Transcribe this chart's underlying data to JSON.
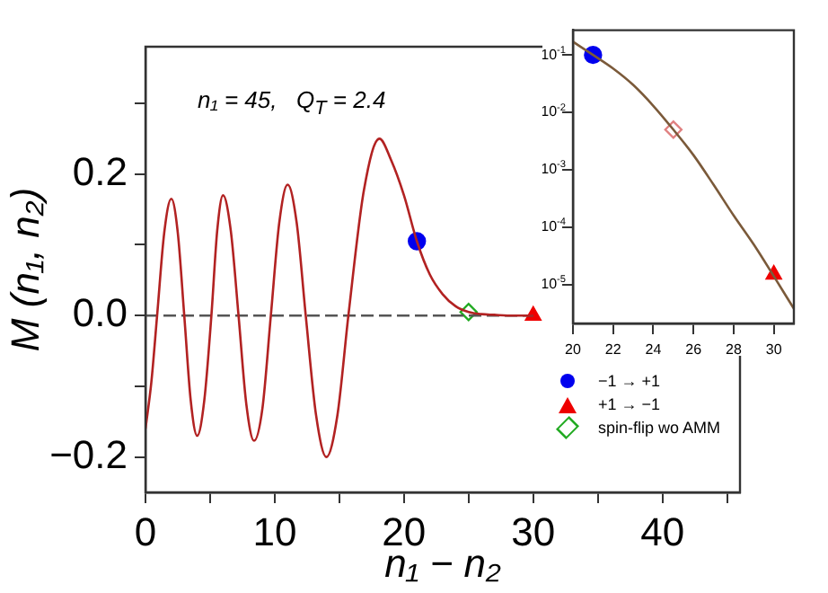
{
  "chart_data": [
    {
      "type": "line",
      "xlabel": "n₁ − n₂",
      "ylabel": "M (n₁, n₂)",
      "annotations": [
        "n₁ = 45,   Q$_{T}$ = 2.4"
      ],
      "xlim": [
        0,
        46
      ],
      "ylim": [
        -0.25,
        0.38
      ],
      "xticks": [
        0,
        {
          "value": 5,
          "label": null
        },
        10,
        {
          "value": 15,
          "label": null
        },
        20,
        {
          "value": 25,
          "label": null
        },
        30,
        {
          "value": 35,
          "label": null
        },
        40,
        {
          "value": 45,
          "label": null
        }
      ],
      "yticks": [
        {
          "value": -0.2,
          "label": "−0.2"
        },
        {
          "value": -0.1,
          "label": null
        },
        {
          "value": 0,
          "label": "0.0"
        },
        {
          "value": 0.1,
          "label": null
        },
        0.2,
        {
          "value": 0.3,
          "label": null
        }
      ],
      "grid": false,
      "legend": "bottom right",
      "series": [
        {
          "color": "#b22222",
          "x": [
            0,
            0.45,
            0.9,
            1.45,
            2,
            2.5,
            3,
            3.5,
            4,
            4.55,
            5.1,
            5.55,
            6,
            6.6,
            7.2,
            7.8,
            8.4,
            9.05,
            9.7,
            10.35,
            11,
            11.7,
            12.4,
            13.2,
            14,
            14.85,
            15.7,
            16.9,
            18.1,
            19,
            20,
            21,
            22,
            23,
            24,
            25,
            26,
            27,
            28,
            30
          ],
          "values": [
            -0.16,
            -0.095,
            0,
            0.117,
            0.165,
            0.117,
            0,
            -0.12,
            -0.17,
            -0.12,
            0,
            0.12,
            0.17,
            0.12,
            0,
            -0.125,
            -0.177,
            -0.131,
            0,
            0.131,
            0.185,
            0.131,
            0,
            -0.141,
            -0.2,
            -0.141,
            0,
            0.177,
            0.25,
            0.22,
            0.17,
            0.105,
            0.058,
            0.03,
            0.013,
            0.005,
            0.002,
            0.001,
            0,
            0
          ]
        },
        {
          "color": "#555555",
          "line_style": "dashed",
          "x": [
            0,
            30
          ],
          "values": [
            0,
            0
          ]
        },
        {
          "type": "scatter",
          "name": "−1 → +1",
          "marker": "circle",
          "color": "#0000ee",
          "x": [
            21
          ],
          "values": [
            0.105
          ]
        },
        {
          "type": "scatter",
          "name": "+1 → −1",
          "marker": "triangle",
          "color": "#ee0000",
          "x": [
            30
          ],
          "values": [
            0
          ]
        },
        {
          "type": "scatter",
          "name": "spin-flip wo AMM",
          "marker": "diamond",
          "color": "#22aa22",
          "x": [
            25
          ],
          "values": [
            0.005
          ]
        }
      ]
    },
    {
      "type": "line",
      "log": "y",
      "xlim": [
        20,
        31
      ],
      "ylim": [
        2.1e-06,
        0.27
      ],
      "xticks": [
        20,
        22,
        24,
        26,
        28,
        30
      ],
      "yticks": [
        {
          "value": 0.1,
          "label": "10$^{-1}$"
        },
        {
          "value": 0.01,
          "label": "10$^{-2}$"
        },
        {
          "value": 0.001,
          "label": "10$^{-3}$"
        },
        {
          "value": 0.0001,
          "label": "10$^{-4}$"
        },
        {
          "value": 1e-05,
          "label": "10$^{-5}$"
        }
      ],
      "grid": false,
      "series": [
        {
          "color": "#7b5a3a",
          "x": [
            20,
            21,
            22,
            23,
            24,
            25,
            26,
            27,
            28,
            29,
            30,
            31
          ],
          "values": [
            0.17,
            0.1,
            0.058,
            0.03,
            0.013,
            0.005,
            0.0018,
            0.00055,
            0.00016,
            5e-05,
            1.4e-05,
            3.8e-06
          ]
        },
        {
          "type": "scatter",
          "marker": "circle",
          "color": "#0000ee",
          "x": [
            21
          ],
          "values": [
            0.1
          ]
        },
        {
          "type": "scatter",
          "marker": "diamond",
          "color": "#e08080",
          "x": [
            25
          ],
          "values": [
            0.005
          ]
        },
        {
          "type": "scatter",
          "marker": "triangle",
          "color": "#ee0000",
          "x": [
            30
          ],
          "values": [
            1.5e-05
          ]
        }
      ]
    }
  ]
}
